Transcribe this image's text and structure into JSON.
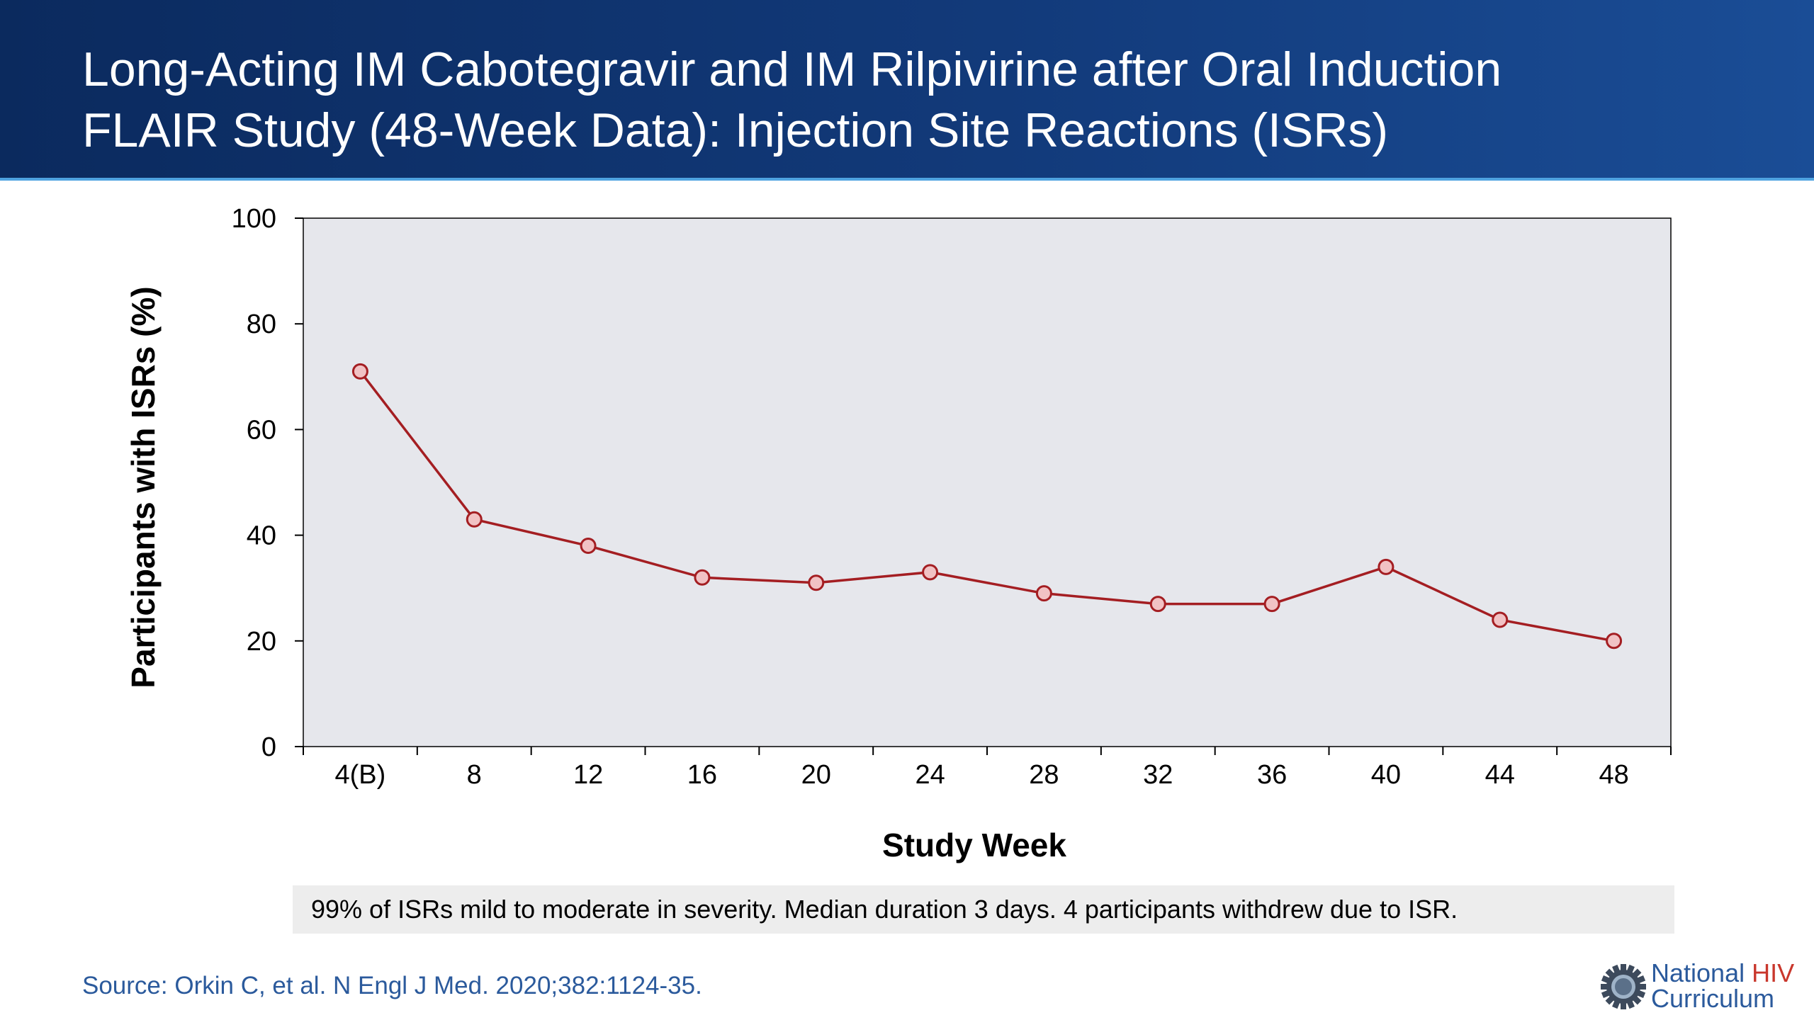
{
  "header": {
    "title_line1": "Long-Acting IM Cabotegravir and IM Rilpivirine after Oral Induction",
    "title_line2": "FLAIR Study (48-Week Data): Injection Site Reactions (ISRs)"
  },
  "chart_data": {
    "type": "line",
    "categories": [
      "4(B)",
      "8",
      "12",
      "16",
      "20",
      "24",
      "28",
      "32",
      "36",
      "40",
      "44",
      "48"
    ],
    "values": [
      71,
      43,
      38,
      32,
      31,
      33,
      29,
      27,
      27,
      34,
      24,
      20
    ],
    "xlabel": "Study Week",
    "ylabel": "Participants with ISRs (%)",
    "ylim": [
      0,
      100
    ],
    "yticks": [
      0,
      20,
      40,
      60,
      80,
      100
    ],
    "grid": false,
    "legend": "none",
    "colors": {
      "plot_background": "#e6e7ec",
      "line": "#a41e22",
      "marker_fill": "#f1c2c4"
    }
  },
  "note": "99% of ISRs mild to moderate in severity. Median duration 3 days. 4 participants withdrew due to ISR.",
  "source": "Source: Orkin C, et al. N Engl J Med. 2020;382:1124-35.",
  "logo": {
    "icon": "gear-globe-icon",
    "line1_part1": "National ",
    "line1_part2": "HIV",
    "line2": "Curriculum"
  }
}
